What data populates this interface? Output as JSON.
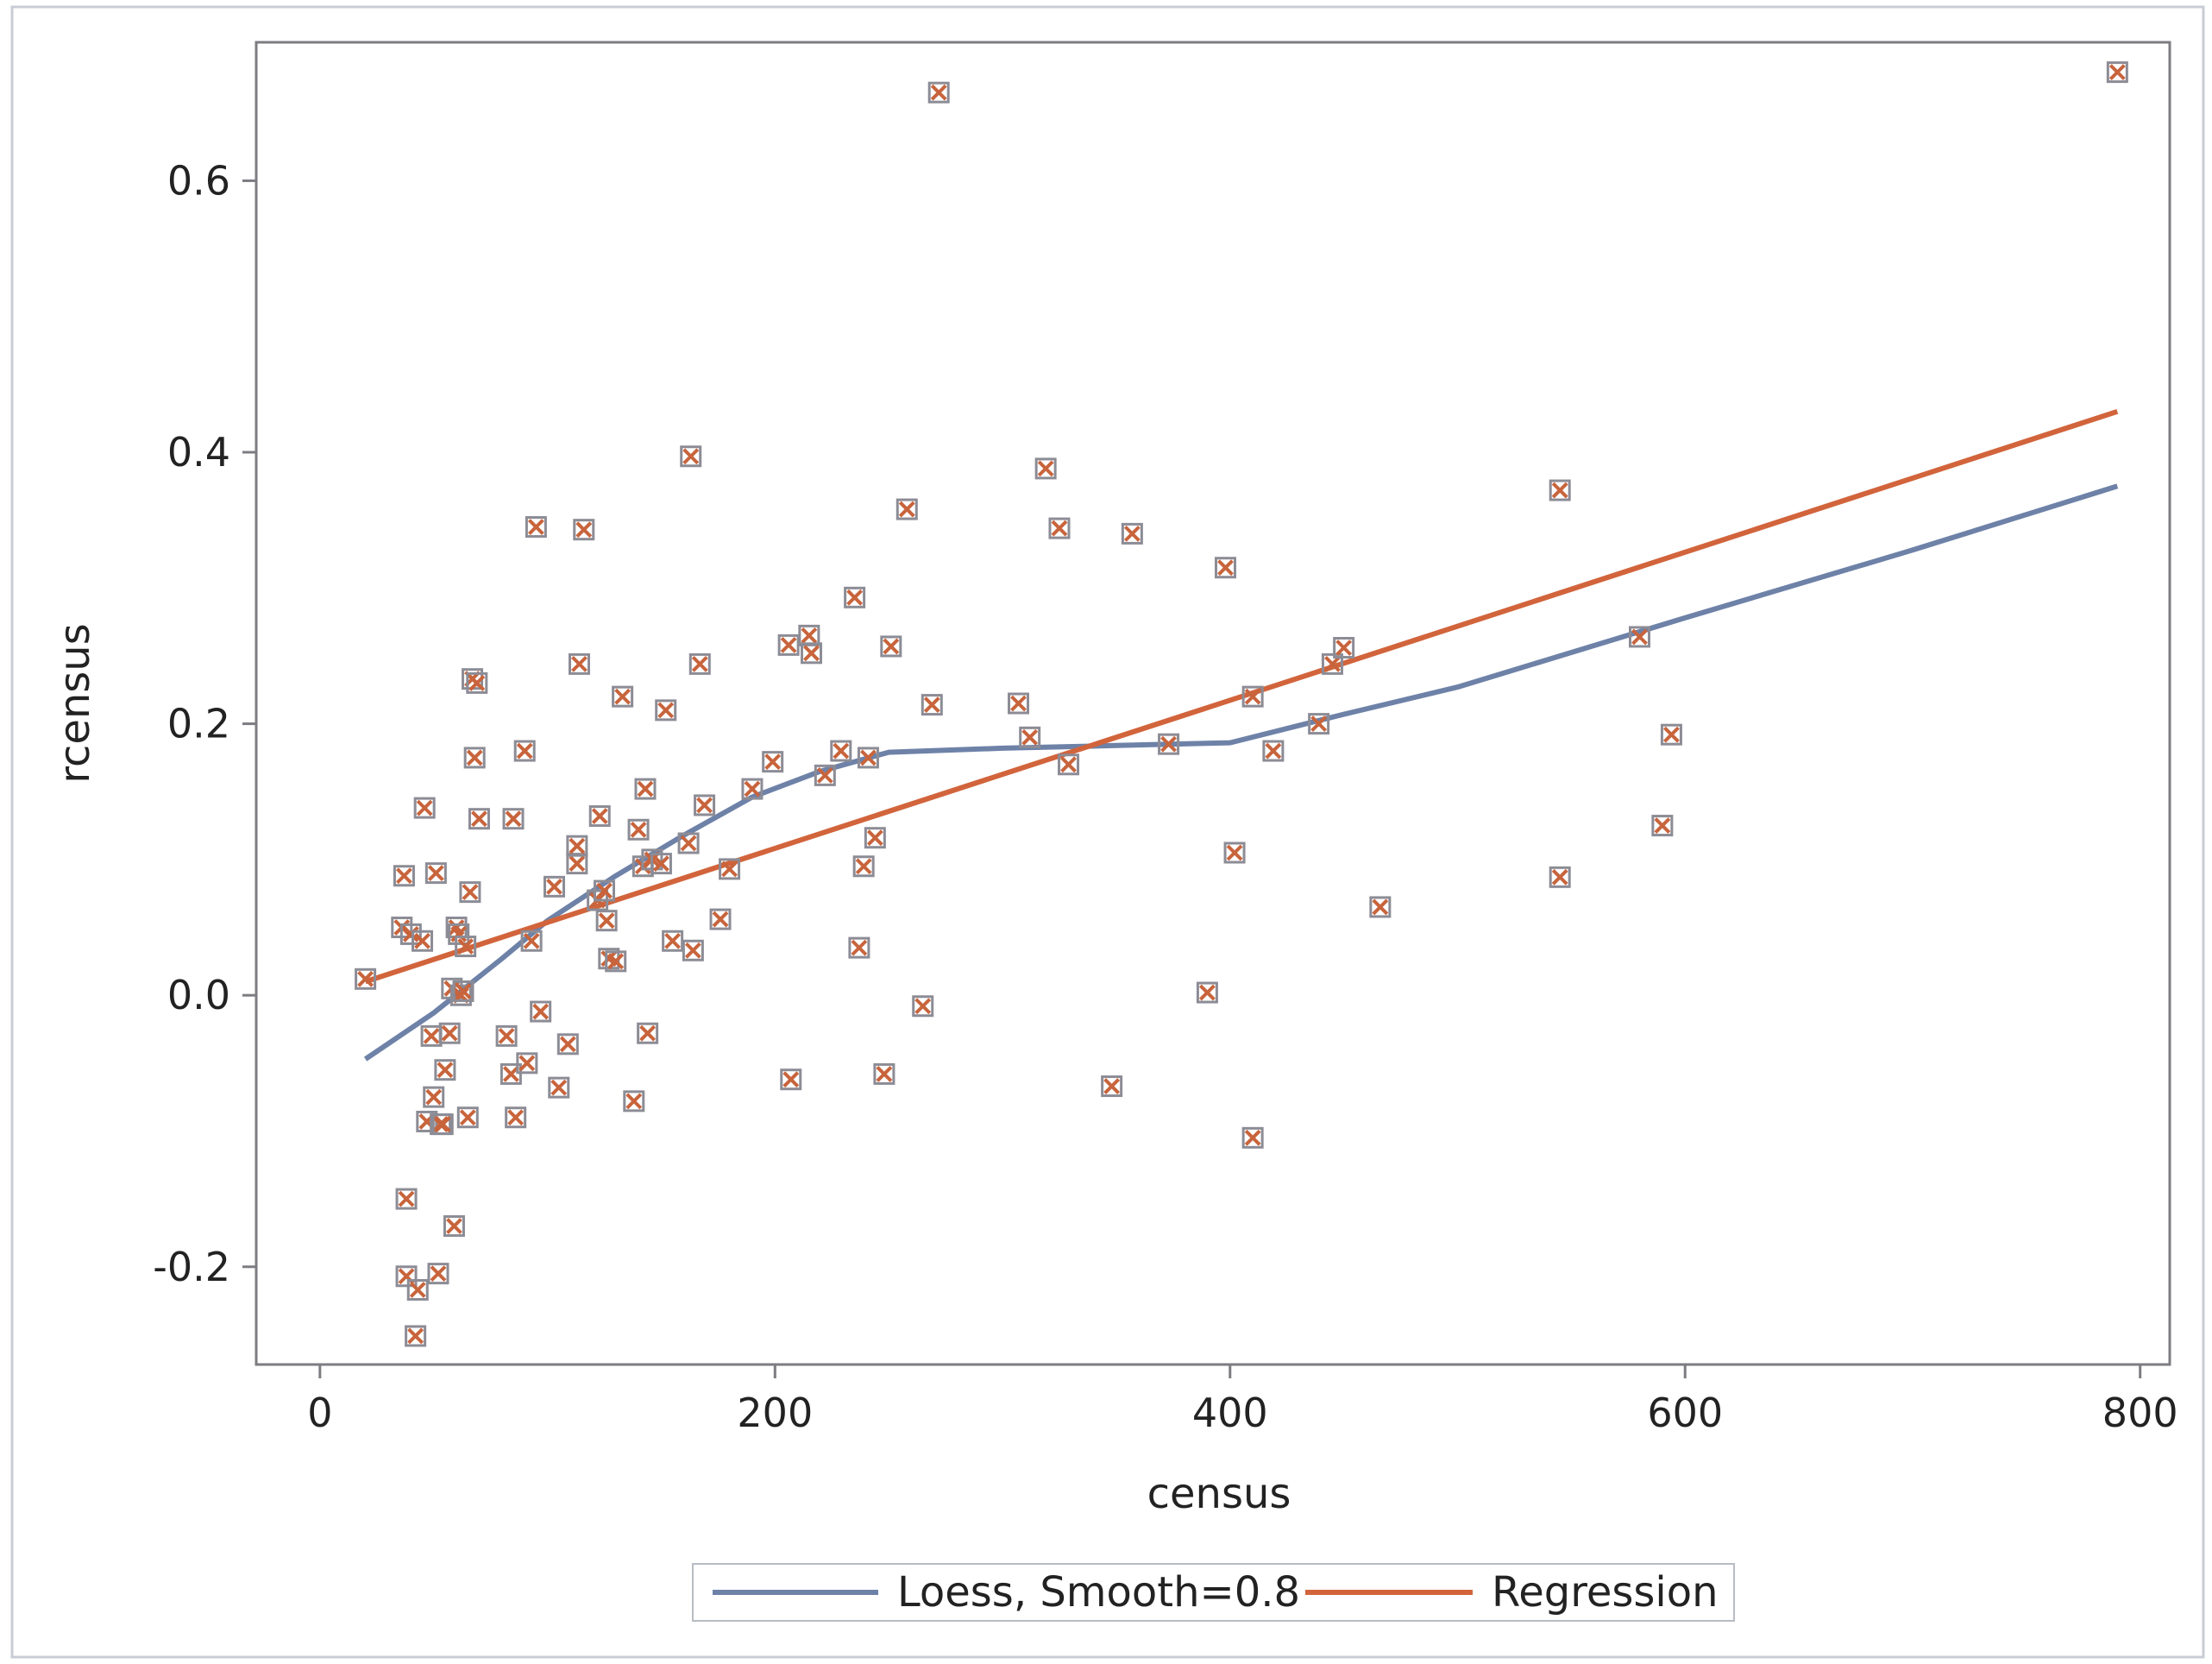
{
  "chart_data": {
    "type": "scatter",
    "title": "",
    "xlabel": "census",
    "ylabel": "rcensus",
    "xlim": [
      -28,
      813
    ],
    "ylim": [
      -0.272,
      0.702
    ],
    "xticks": [
      0,
      200,
      400,
      600,
      800
    ],
    "xtick_labels": [
      "0",
      "200",
      "400",
      "600",
      "800"
    ],
    "yticks": [
      -0.2,
      0.0,
      0.2,
      0.4,
      0.6
    ],
    "ytick_labels": [
      "-0.2",
      "0.0",
      "0.2",
      "0.4",
      "0.6"
    ],
    "grid": false,
    "legend_position": "bottom-center",
    "series": [
      {
        "name": "",
        "kind": "scatter",
        "marker": "box-x",
        "color": "#c8643c",
        "marker_outline": "#8c8c96",
        "points": [
          [
            20,
            0.012
          ],
          [
            36,
            0.05
          ],
          [
            37,
            0.088
          ],
          [
            38,
            -0.15
          ],
          [
            40,
            0.045
          ],
          [
            38,
            -0.207
          ],
          [
            42,
            -0.251
          ],
          [
            43,
            -0.217
          ],
          [
            45,
            0.04
          ],
          [
            46,
            0.138
          ],
          [
            47,
            -0.093
          ],
          [
            49,
            -0.03
          ],
          [
            50,
            -0.075
          ],
          [
            51,
            0.09
          ],
          [
            52,
            -0.205
          ],
          [
            53,
            -0.095
          ],
          [
            54,
            -0.095
          ],
          [
            55,
            -0.055
          ],
          [
            57,
            -0.028
          ],
          [
            58,
            0.005
          ],
          [
            59,
            -0.17
          ],
          [
            60,
            0.05
          ],
          [
            61,
            0.045
          ],
          [
            62,
            0.0
          ],
          [
            63,
            0.003
          ],
          [
            64,
            0.036
          ],
          [
            65,
            -0.09
          ],
          [
            66,
            0.076
          ],
          [
            67,
            0.233
          ],
          [
            68,
            0.175
          ],
          [
            69,
            0.23
          ],
          [
            70,
            0.13
          ],
          [
            82,
            -0.03
          ],
          [
            84,
            -0.058
          ],
          [
            85,
            0.13
          ],
          [
            86,
            -0.09
          ],
          [
            90,
            0.18
          ],
          [
            91,
            -0.05
          ],
          [
            93,
            0.04
          ],
          [
            95,
            0.345
          ],
          [
            97,
            -0.012
          ],
          [
            103,
            0.08
          ],
          [
            105,
            -0.068
          ],
          [
            109,
            -0.036
          ],
          [
            113,
            0.097
          ],
          [
            113,
            0.11
          ],
          [
            114,
            0.244
          ],
          [
            116,
            0.343
          ],
          [
            122,
            0.07
          ],
          [
            123,
            0.132
          ],
          [
            125,
            0.077
          ],
          [
            126,
            0.055
          ],
          [
            127,
            0.027
          ],
          [
            130,
            0.025
          ],
          [
            133,
            0.22
          ],
          [
            138,
            -0.078
          ],
          [
            140,
            0.122
          ],
          [
            142,
            0.095
          ],
          [
            143,
            0.152
          ],
          [
            144,
            -0.028
          ],
          [
            146,
            0.1
          ],
          [
            150,
            0.097
          ],
          [
            152,
            0.21
          ],
          [
            155,
            0.04
          ],
          [
            162,
            0.112
          ],
          [
            163,
            0.397
          ],
          [
            164,
            0.033
          ],
          [
            167,
            0.244
          ],
          [
            169,
            0.14
          ],
          [
            176,
            0.056
          ],
          [
            180,
            0.093
          ],
          [
            190,
            0.152
          ],
          [
            199,
            0.172
          ],
          [
            206,
            0.258
          ],
          [
            207,
            -0.062
          ],
          [
            215,
            0.265
          ],
          [
            216,
            0.252
          ],
          [
            222,
            0.162
          ],
          [
            229,
            0.18
          ],
          [
            235,
            0.293
          ],
          [
            237,
            0.035
          ],
          [
            239,
            0.095
          ],
          [
            241,
            0.175
          ],
          [
            244,
            0.116
          ],
          [
            248,
            -0.058
          ],
          [
            251,
            0.257
          ],
          [
            258,
            0.358
          ],
          [
            265,
            -0.008
          ],
          [
            269,
            0.214
          ],
          [
            272,
            0.665
          ],
          [
            307,
            0.215
          ],
          [
            312,
            0.19
          ],
          [
            319,
            0.388
          ],
          [
            325,
            0.344
          ],
          [
            329,
            0.17
          ],
          [
            348,
            -0.067
          ],
          [
            357,
            0.34
          ],
          [
            373,
            0.185
          ],
          [
            390,
            0.002
          ],
          [
            398,
            0.315
          ],
          [
            402,
            0.105
          ],
          [
            410,
            0.22
          ],
          [
            410,
            -0.105
          ],
          [
            419,
            0.18
          ],
          [
            439,
            0.2
          ],
          [
            445,
            0.244
          ],
          [
            450,
            0.256
          ],
          [
            466,
            0.065
          ],
          [
            545,
            0.372
          ],
          [
            545,
            0.087
          ],
          [
            580,
            0.264
          ],
          [
            590,
            0.125
          ],
          [
            594,
            0.192
          ],
          [
            790,
            0.68
          ]
        ]
      },
      {
        "name": "Loess, Smooth=0.8",
        "kind": "line",
        "color": "#6e82a8",
        "points": [
          [
            20,
            -0.047
          ],
          [
            50,
            -0.013
          ],
          [
            80,
            0.027
          ],
          [
            100,
            0.055
          ],
          [
            130,
            0.088
          ],
          [
            160,
            0.118
          ],
          [
            190,
            0.146
          ],
          [
            220,
            0.165
          ],
          [
            250,
            0.179
          ],
          [
            300,
            0.182
          ],
          [
            350,
            0.184
          ],
          [
            400,
            0.186
          ],
          [
            450,
            0.207
          ],
          [
            500,
            0.227
          ],
          [
            600,
            0.278
          ],
          [
            700,
            0.328
          ],
          [
            790,
            0.375
          ]
        ]
      },
      {
        "name": "Regression",
        "kind": "line",
        "color": "#d2643c",
        "points": [
          [
            20,
            0.01
          ],
          [
            790,
            0.43
          ]
        ]
      }
    ]
  }
}
